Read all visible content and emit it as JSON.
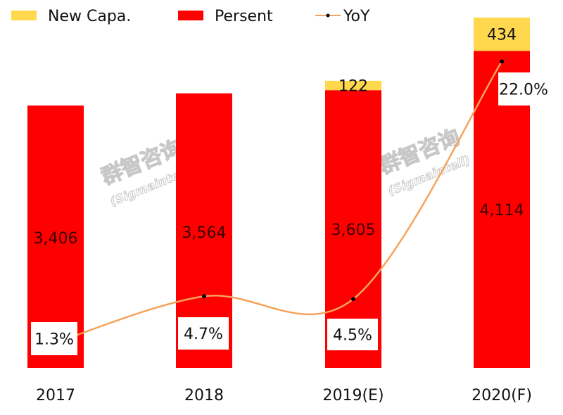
{
  "chart_data": {
    "type": "bar",
    "stacked": true,
    "title": "",
    "xlabel": "",
    "ylabel": "",
    "categories": [
      "2017",
      "2018",
      "2019(E)",
      "2020(F)"
    ],
    "series": [
      {
        "name": "Persent",
        "type": "bar",
        "color": "#ff0000",
        "values": [
          3406,
          3564,
          3605,
          4114
        ],
        "labels": [
          "3,406",
          "3,564",
          "3,605",
          "4,114"
        ]
      },
      {
        "name": "New Capa.",
        "type": "bar",
        "color": "#ffd84d",
        "values": [
          0,
          0,
          122,
          434
        ],
        "labels": [
          "",
          "",
          "122",
          "434"
        ]
      },
      {
        "name": "YoY",
        "type": "line",
        "axis": "secondary",
        "color": "#f5a35c",
        "marker_color": "#000000",
        "values": [
          1.3,
          4.7,
          4.5,
          22.0
        ],
        "labels": [
          "1.3%",
          "4.7%",
          "4.5%",
          "22.0%"
        ]
      }
    ],
    "ylim": [
      0,
      4800
    ],
    "y2lim": [
      0,
      26.5
    ],
    "grid": false,
    "axes_visible": false,
    "legend": {
      "placement": "top-left",
      "entries": [
        "New Capa.",
        "Persent",
        "YoY"
      ]
    },
    "watermark": [
      "群智咨询",
      "(Sigmaintell)"
    ]
  }
}
